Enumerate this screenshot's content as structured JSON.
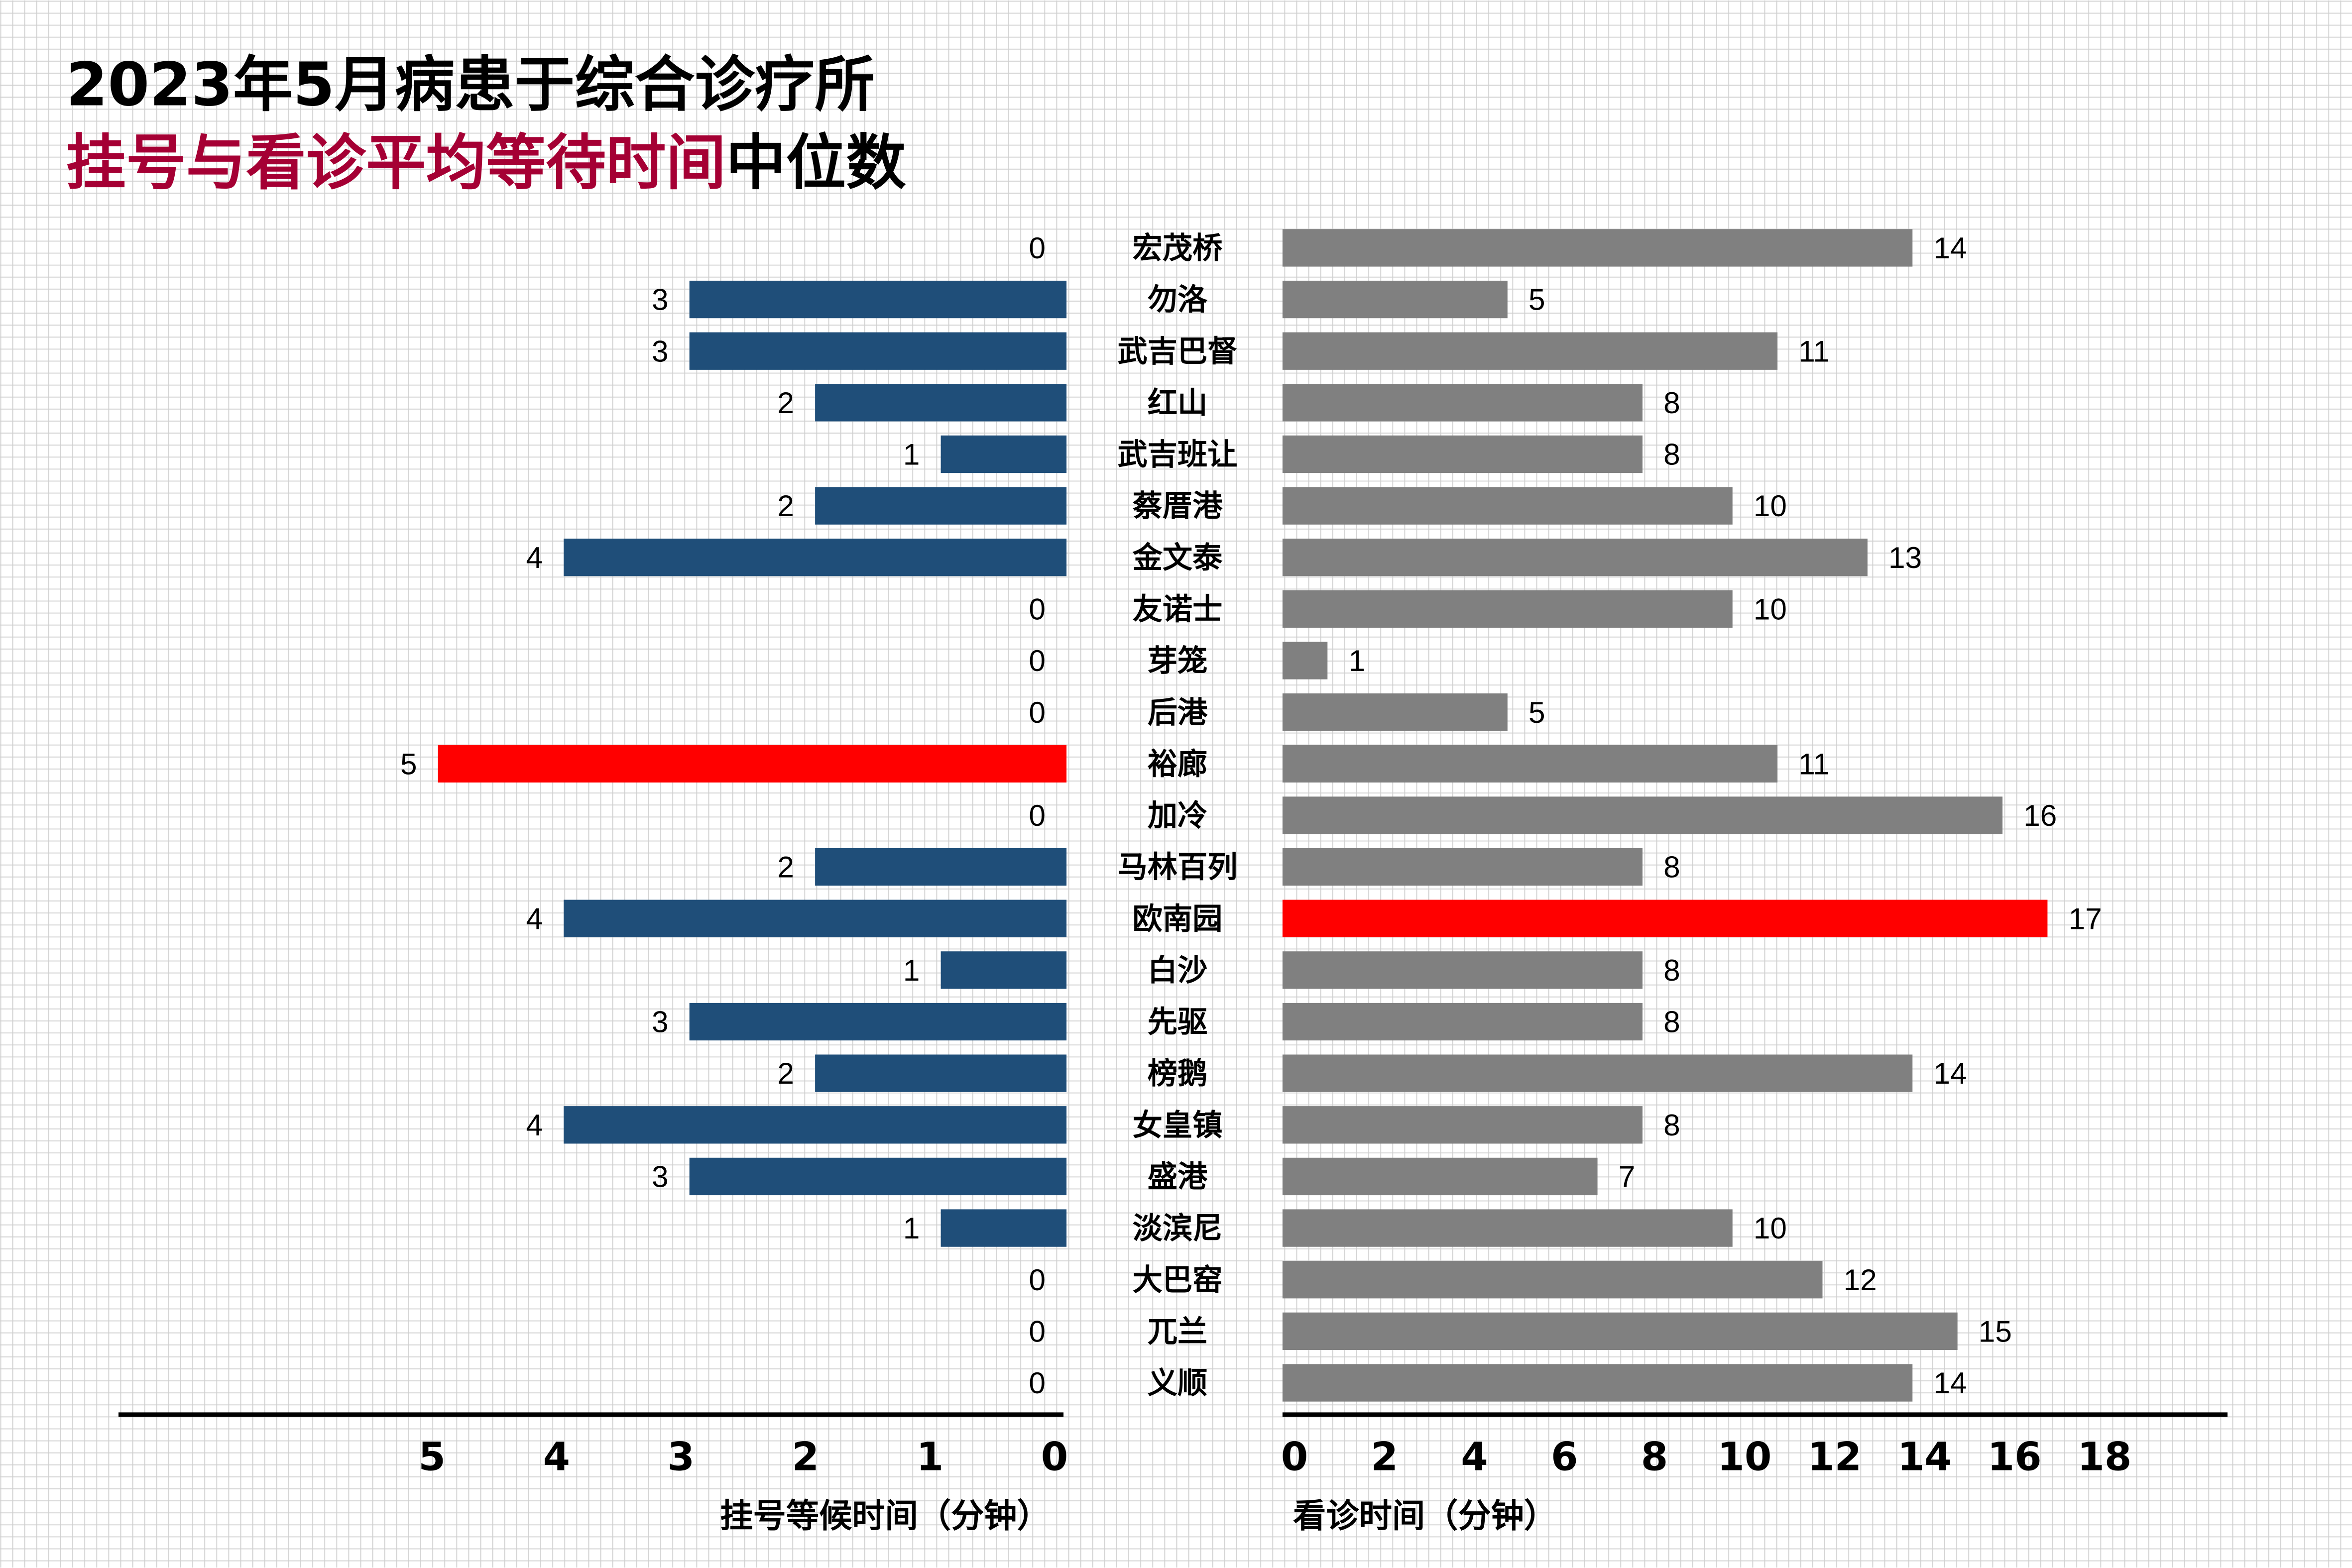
{
  "chart_data": {
    "type": "bar",
    "orientation": "horizontal-butterfly",
    "title_line1": "2023年5月病患于综合诊疗所",
    "title_line2_highlight": "挂号与看诊平均等待时间",
    "title_line2_rest": "中位数",
    "categories": [
      "宏茂桥",
      "勿洛",
      "武吉巴督",
      "红山",
      "武吉班让",
      "蔡厝港",
      "金文泰",
      "友诺士",
      "芽笼",
      "后港",
      "裕廊",
      "加冷",
      "马林百列",
      "欧南园",
      "白沙",
      "先驱",
      "榜鹅",
      "女皇镇",
      "盛港",
      "淡滨尼",
      "大巴窑",
      "兀兰",
      "义顺"
    ],
    "series": [
      {
        "axis": "left",
        "values": [
          0,
          3,
          3,
          2,
          1,
          2,
          4,
          0,
          0,
          0,
          5,
          0,
          2,
          4,
          1,
          3,
          2,
          4,
          3,
          1,
          0,
          0,
          0
        ],
        "xlabel": "挂号等候时间（分钟）",
        "xlim": [
          0,
          5
        ],
        "ticks": [
          "5",
          "4",
          "3",
          "2",
          "1",
          "0"
        ],
        "color": "#1f4e79",
        "highlight_color": "#ff0000",
        "highlight_index": 10
      },
      {
        "axis": "right",
        "values": [
          14,
          5,
          11,
          8,
          8,
          10,
          13,
          10,
          1,
          5,
          11,
          16,
          8,
          17,
          8,
          8,
          14,
          8,
          7,
          10,
          12,
          15,
          14
        ],
        "xlabel": "看诊时间（分钟）",
        "xlim": [
          0,
          18
        ],
        "ticks": [
          "0",
          "2",
          "4",
          "6",
          "8",
          "10",
          "12",
          "14",
          "16",
          "18"
        ],
        "color": "#808080",
        "highlight_color": "#ff0000",
        "highlight_index": 13
      }
    ],
    "colors": {
      "title_accent": "#a50034",
      "text": "#000000",
      "grid": "#d0d0d0"
    },
    "grid": true
  }
}
